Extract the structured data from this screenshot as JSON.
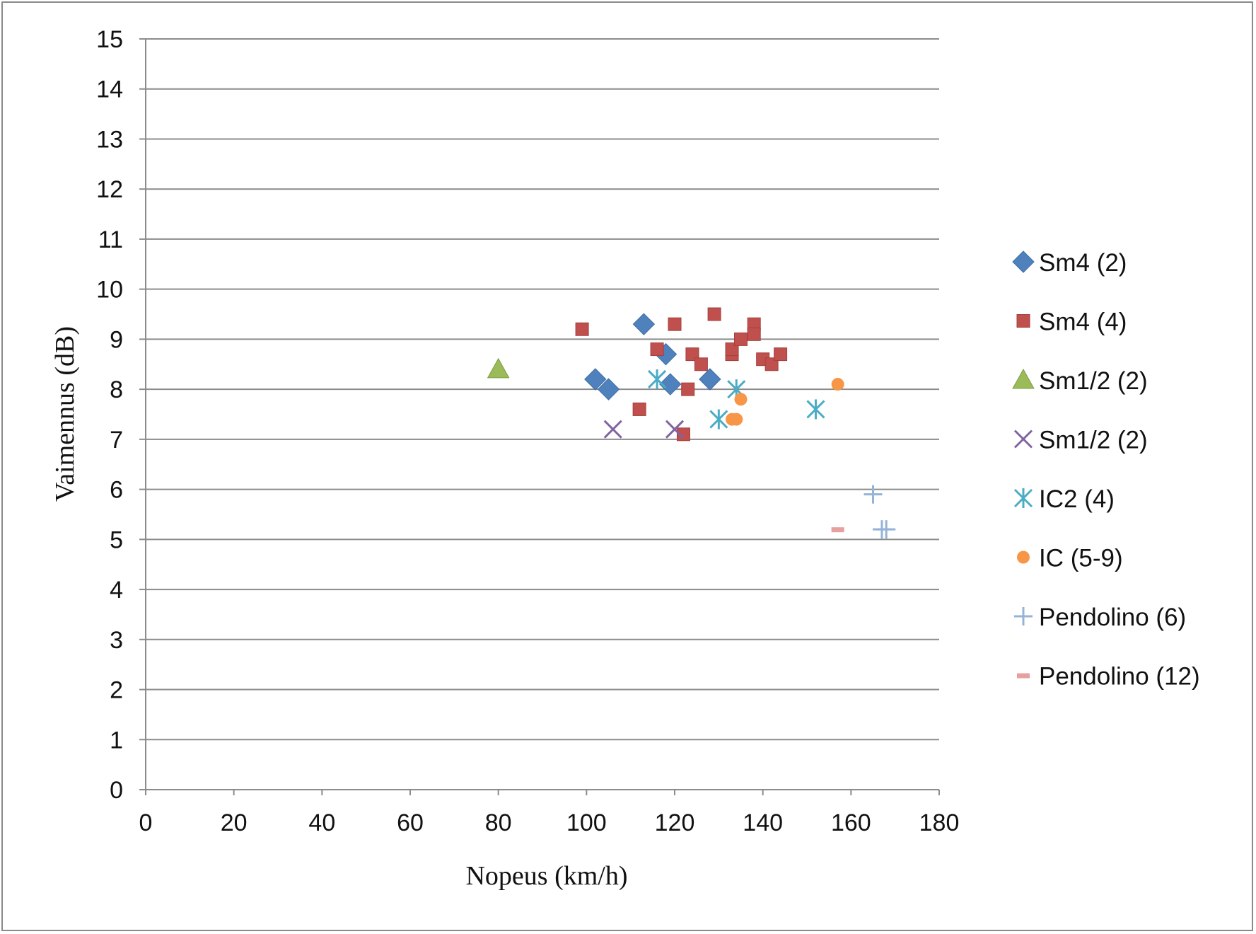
{
  "chart_data": {
    "type": "scatter",
    "xlabel": "Nopeus (km/h)",
    "ylabel": "Vaimennus (dB)",
    "xlim": [
      0,
      180
    ],
    "ylim": [
      0,
      15
    ],
    "x_ticks": [
      0,
      20,
      40,
      60,
      80,
      100,
      120,
      140,
      160,
      180
    ],
    "y_ticks": [
      0,
      1,
      2,
      3,
      4,
      5,
      6,
      7,
      8,
      9,
      10,
      11,
      12,
      13,
      14,
      15
    ],
    "grid": "horizontal",
    "legend_position": "right",
    "series": [
      {
        "name": "Sm4 (2)",
        "marker": "diamond",
        "color": "#4F81BD",
        "points": [
          [
            102,
            8.2
          ],
          [
            105,
            8.0
          ],
          [
            113,
            9.3
          ],
          [
            118,
            8.7
          ],
          [
            119,
            8.1
          ],
          [
            128,
            8.2
          ]
        ]
      },
      {
        "name": "Sm4 (4)",
        "marker": "square",
        "color": "#C0504D",
        "points": [
          [
            99,
            9.2
          ],
          [
            112,
            7.6
          ],
          [
            116,
            8.8
          ],
          [
            120,
            9.3
          ],
          [
            122,
            7.1
          ],
          [
            123,
            8.0
          ],
          [
            124,
            8.7
          ],
          [
            126,
            8.5
          ],
          [
            129,
            9.5
          ],
          [
            133,
            8.7
          ],
          [
            133,
            8.8
          ],
          [
            135,
            9.0
          ],
          [
            138,
            9.3
          ],
          [
            138,
            9.1
          ],
          [
            140,
            8.6
          ],
          [
            142,
            8.5
          ],
          [
            144,
            8.7
          ]
        ]
      },
      {
        "name": "Sm1/2 (2)",
        "marker": "triangle",
        "color": "#9BBB59",
        "points": [
          [
            80,
            8.4
          ]
        ]
      },
      {
        "name": "Sm1/2 (2)",
        "marker": "x",
        "color": "#8064A2",
        "points": [
          [
            106,
            7.2
          ],
          [
            120,
            7.2
          ]
        ]
      },
      {
        "name": "IC2 (4)",
        "marker": "star",
        "color": "#4BACC6",
        "points": [
          [
            116,
            8.2
          ],
          [
            130,
            7.4
          ],
          [
            134,
            8.0
          ],
          [
            152,
            7.6
          ]
        ]
      },
      {
        "name": "IC (5-9)",
        "marker": "circle",
        "color": "#F79646",
        "points": [
          [
            133,
            7.4
          ],
          [
            134,
            7.4
          ],
          [
            135,
            7.8
          ],
          [
            157,
            8.1
          ]
        ]
      },
      {
        "name": "Pendolino (6)",
        "marker": "plus",
        "color": "#95B3D7",
        "points": [
          [
            165,
            5.9
          ],
          [
            167,
            5.2
          ],
          [
            168,
            5.2
          ]
        ]
      },
      {
        "name": "Pendolino (12)",
        "marker": "dash",
        "color": "#E6A0A0",
        "points": [
          [
            157,
            5.2
          ]
        ]
      }
    ]
  }
}
